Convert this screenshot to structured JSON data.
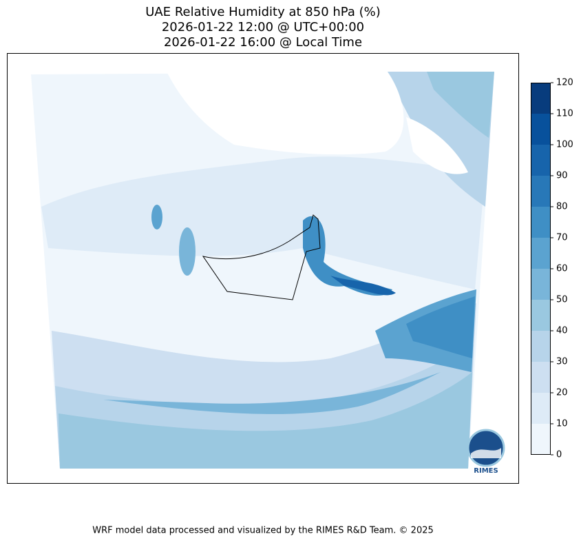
{
  "title": [
    "UAE Relative Humidity at 850 hPa (%)",
    "2026-01-22 12:00 @ UTC+00:00",
    "2026-01-22 16:00 @ Local Time"
  ],
  "colorbar": {
    "ticks": [
      0,
      10,
      20,
      30,
      40,
      50,
      60,
      70,
      80,
      90,
      100,
      110,
      120
    ],
    "colors": [
      "#eff6fc",
      "#deebf7",
      "#cddff1",
      "#b7d4ea",
      "#9ac8e0",
      "#79b5d9",
      "#5ba3d0",
      "#3f8fc5",
      "#2878b8",
      "#1764ab",
      "#08519c",
      "#083c7d"
    ]
  },
  "logo": "RIMES",
  "footer": "WRF model data processed and visualized by the RIMES R&D Team. © 2025"
}
